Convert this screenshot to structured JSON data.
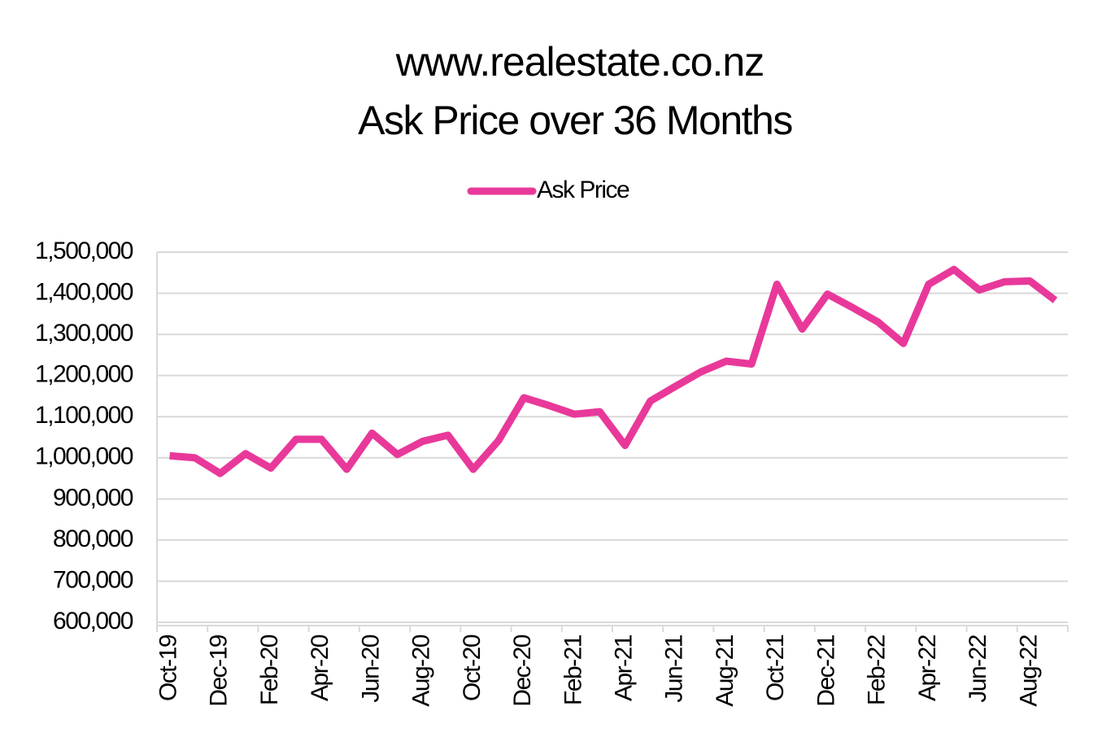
{
  "chart_data": {
    "type": "line",
    "title": [
      "www.realestate.co.nz",
      "Ask Price over 36 Months"
    ],
    "categories": [
      "Oct-19",
      null,
      "Dec-19",
      null,
      "Feb-20",
      null,
      "Apr-20",
      null,
      "Jun-20",
      null,
      "Aug-20",
      null,
      "Oct-20",
      null,
      "Dec-20",
      null,
      "Feb-21",
      null,
      "Apr-21",
      null,
      "Jun-21",
      null,
      "Aug-21",
      null,
      "Oct-21",
      null,
      "Dec-21",
      null,
      "Feb-22",
      null,
      "Apr-22",
      null,
      "Jun-22",
      null,
      "Aug-22",
      null
    ],
    "series": [
      {
        "name": "Ask Price",
        "color": "#e8399a",
        "values": [
          1005000,
          1000000,
          962000,
          1010000,
          975000,
          1045000,
          1045000,
          972000,
          1060000,
          1008000,
          1040000,
          1055000,
          972000,
          1042000,
          1146000,
          1127000,
          1106000,
          1112000,
          1030000,
          1138000,
          1174000,
          1209000,
          1235000,
          1228000,
          1422000,
          1313000,
          1398000,
          1365000,
          1330000,
          1278000,
          1422000,
          1458000,
          1408000,
          1428000,
          1430000,
          1383000
        ]
      }
    ],
    "ylim": [
      600000,
      1500000
    ],
    "yticks": [
      {
        "value": 600000,
        "label": "600,000"
      },
      {
        "value": 700000,
        "label": "700,000"
      },
      {
        "value": 800000,
        "label": "800,000"
      },
      {
        "value": 900000,
        "label": "900,000"
      },
      {
        "value": 1000000,
        "label": "1,000,000"
      },
      {
        "value": 1100000,
        "label": "1,100,000"
      },
      {
        "value": 1200000,
        "label": "1,200,000"
      },
      {
        "value": 1300000,
        "label": "1,300,000"
      },
      {
        "value": 1400000,
        "label": "1,400,000"
      },
      {
        "value": 1500000,
        "label": "1,500,000"
      }
    ],
    "grid": true,
    "legend": "top"
  }
}
